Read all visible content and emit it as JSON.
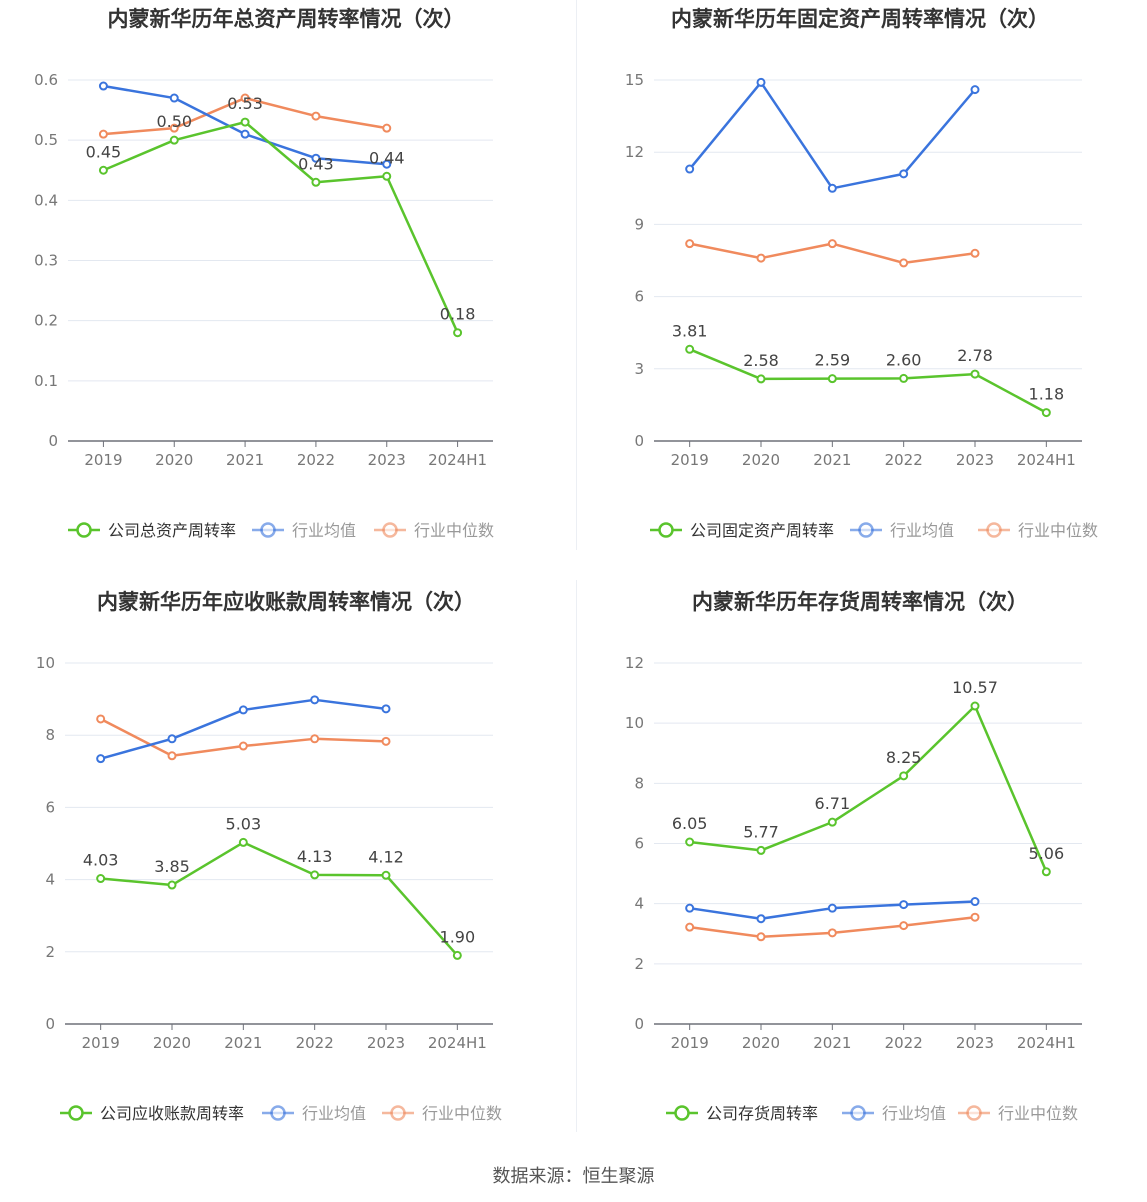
{
  "source_label": "数据来源：恒生聚源",
  "colors": {
    "company": "#5ac42d",
    "avg": "#3a74dd",
    "median": "#f08a5d",
    "grid": "#e3e8f0",
    "axis": "#6e7079",
    "tick": "#777"
  },
  "chart_data": [
    {
      "type": "line",
      "title": "内蒙新华历年总资产周转率情况（次）",
      "categories": [
        "2019",
        "2020",
        "2021",
        "2022",
        "2023",
        "2024H1"
      ],
      "ylim": [
        0,
        0.6
      ],
      "yticks": [
        "0",
        "0.1",
        "0.2",
        "0.3",
        "0.4",
        "0.5",
        "0.6"
      ],
      "series": [
        {
          "name": "公司总资产周转率",
          "role": "company",
          "values": [
            0.45,
            0.5,
            0.53,
            0.43,
            0.44,
            0.18
          ],
          "labels": [
            "0.45",
            "0.50",
            "0.53",
            "0.43",
            "0.44",
            "0.18"
          ]
        },
        {
          "name": "行业均值",
          "role": "avg",
          "values": [
            0.59,
            0.57,
            0.51,
            0.47,
            0.46,
            null
          ]
        },
        {
          "name": "行业中位数",
          "role": "median",
          "values": [
            0.51,
            0.52,
            0.57,
            0.54,
            0.52,
            null
          ]
        }
      ]
    },
    {
      "type": "line",
      "title": "内蒙新华历年固定资产周转率情况（次）",
      "categories": [
        "2019",
        "2020",
        "2021",
        "2022",
        "2023",
        "2024H1"
      ],
      "ylim": [
        0,
        15
      ],
      "yticks": [
        "0",
        "3",
        "6",
        "9",
        "12",
        "15"
      ],
      "series": [
        {
          "name": "公司固定资产周转率",
          "role": "company",
          "values": [
            3.81,
            2.58,
            2.59,
            2.6,
            2.78,
            1.18
          ],
          "labels": [
            "3.81",
            "2.58",
            "2.59",
            "2.60",
            "2.78",
            "1.18"
          ]
        },
        {
          "name": "行业均值",
          "role": "avg",
          "values": [
            11.3,
            14.9,
            10.5,
            11.1,
            14.6,
            null
          ]
        },
        {
          "name": "行业中位数",
          "role": "median",
          "values": [
            8.2,
            7.6,
            8.2,
            7.4,
            7.8,
            null
          ]
        }
      ]
    },
    {
      "type": "line",
      "title": "内蒙新华历年应收账款周转率情况（次）",
      "categories": [
        "2019",
        "2020",
        "2021",
        "2022",
        "2023",
        "2024H1"
      ],
      "ylim": [
        0,
        10
      ],
      "yticks": [
        "0",
        "2",
        "4",
        "6",
        "8",
        "10"
      ],
      "series": [
        {
          "name": "公司应收账款周转率",
          "role": "company",
          "values": [
            4.03,
            3.85,
            5.03,
            4.13,
            4.12,
            1.9
          ],
          "labels": [
            "4.03",
            "3.85",
            "5.03",
            "4.13",
            "4.12",
            "1.90"
          ]
        },
        {
          "name": "行业均值",
          "role": "avg",
          "values": [
            7.35,
            7.9,
            8.7,
            8.98,
            8.73,
            null
          ]
        },
        {
          "name": "行业中位数",
          "role": "median",
          "values": [
            8.45,
            7.43,
            7.7,
            7.9,
            7.83,
            null
          ]
        }
      ]
    },
    {
      "type": "line",
      "title": "内蒙新华历年存货周转率情况（次）",
      "categories": [
        "2019",
        "2020",
        "2021",
        "2022",
        "2023",
        "2024H1"
      ],
      "ylim": [
        0,
        12
      ],
      "yticks": [
        "0",
        "2",
        "4",
        "6",
        "8",
        "10",
        "12"
      ],
      "series": [
        {
          "name": "公司存货周转率",
          "role": "company",
          "values": [
            6.05,
            5.77,
            6.71,
            8.25,
            10.57,
            5.06
          ],
          "labels": [
            "6.05",
            "5.77",
            "6.71",
            "8.25",
            "10.57",
            "5.06"
          ]
        },
        {
          "name": "行业均值",
          "role": "avg",
          "values": [
            3.85,
            3.5,
            3.85,
            3.97,
            4.07,
            null
          ]
        },
        {
          "name": "行业中位数",
          "role": "median",
          "values": [
            3.22,
            2.9,
            3.03,
            3.27,
            3.55,
            null
          ]
        }
      ]
    }
  ]
}
